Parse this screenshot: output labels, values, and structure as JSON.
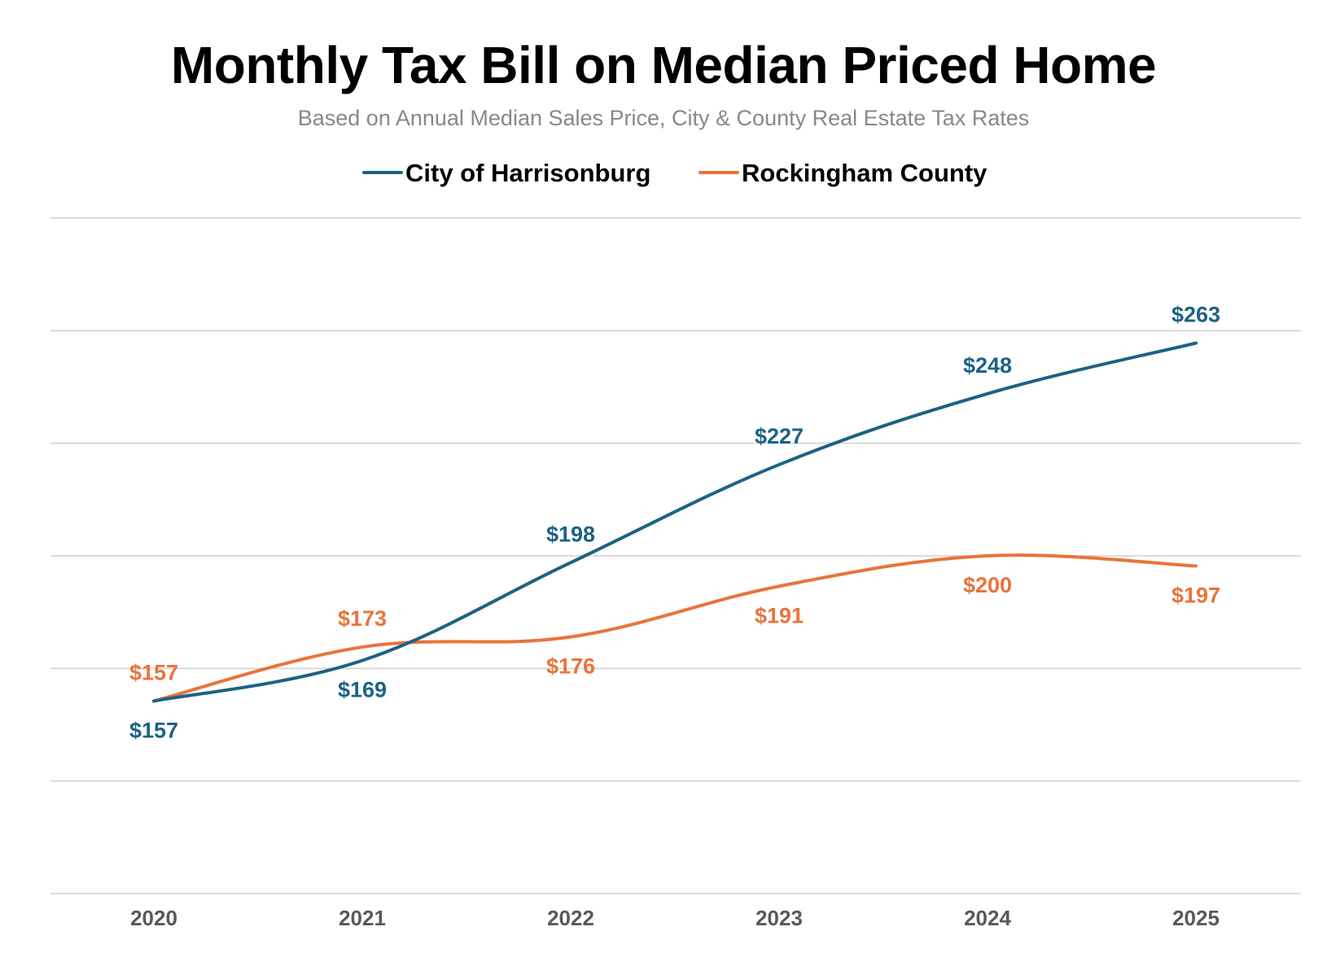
{
  "chart_data": {
    "type": "line",
    "title": "Monthly Tax Bill on Median Priced Home",
    "subtitle": "Based on Annual Median Sales Price, City & County Real Estate Tax Rates",
    "categories": [
      "2020",
      "2021",
      "2022",
      "2023",
      "2024",
      "2025"
    ],
    "ylim": [
      100,
      300
    ],
    "ygrid_step": 33.3333,
    "grid": true,
    "legend_position": "top-center",
    "xlabel": "",
    "ylabel": "",
    "series": [
      {
        "name": "City of Harrisonburg",
        "color": "#1b6285",
        "values": [
          157,
          169,
          198,
          227,
          248,
          263
        ],
        "labels": [
          "$157",
          "$169",
          "$198",
          "$227",
          "$248",
          "$263"
        ],
        "label_side": [
          "below",
          "below",
          "above",
          "above",
          "above",
          "above"
        ]
      },
      {
        "name": "Rockingham County",
        "color": "#e8743b",
        "values": [
          157,
          173,
          176,
          191,
          200,
          197
        ],
        "labels": [
          "$157",
          "$173",
          "$176",
          "$191",
          "$200",
          "$197"
        ],
        "label_side": [
          "above",
          "above",
          "below",
          "below",
          "below",
          "below"
        ]
      }
    ]
  }
}
